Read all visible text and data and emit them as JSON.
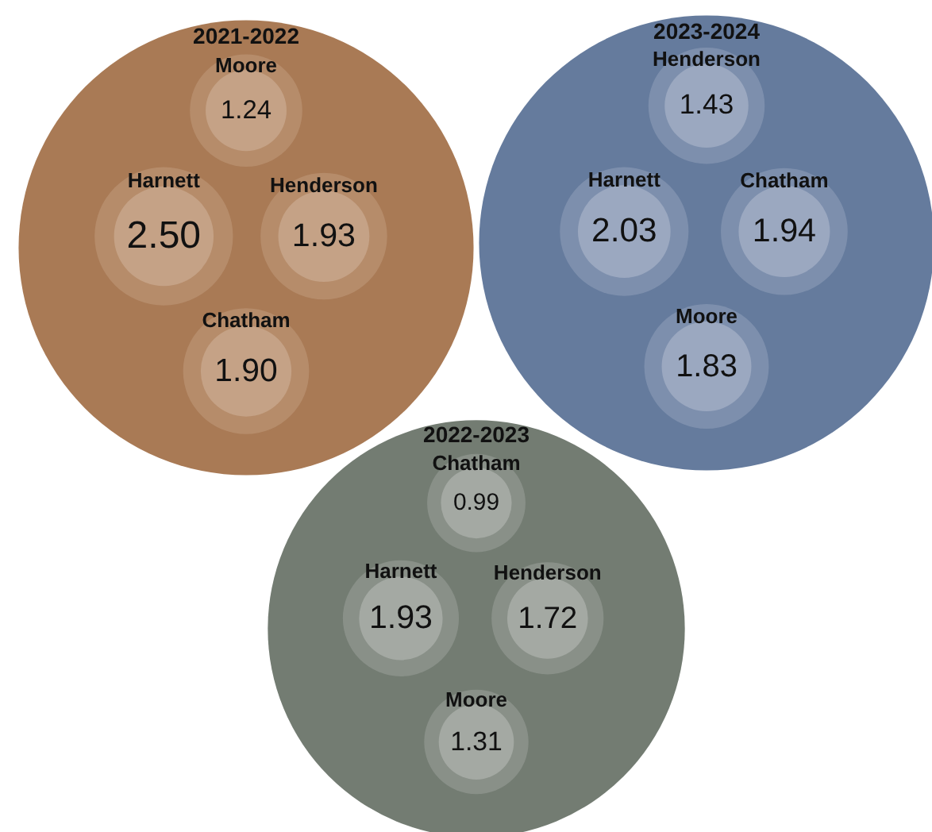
{
  "chart_data": [
    {
      "type": "other",
      "title": "2021-2022",
      "categories": [
        "Moore",
        "Harnett",
        "Henderson",
        "Chatham"
      ],
      "values": [
        1.24,
        2.5,
        1.93,
        1.9
      ],
      "value_labels": [
        "1.24",
        "2.50",
        "1.93",
        "1.90"
      ],
      "color": "#a97a55",
      "colors": [
        "#c5a286",
        "#c5a286",
        "#c5a286",
        "#c5a286"
      ]
    },
    {
      "type": "other",
      "title": "2023-2024",
      "categories": [
        "Henderson",
        "Harnett",
        "Chatham",
        "Moore"
      ],
      "values": [
        1.43,
        2.03,
        1.94,
        1.83
      ],
      "value_labels": [
        "1.43",
        "2.03",
        "1.94",
        "1.83"
      ],
      "color": "#657b9d",
      "colors": [
        "#9ba8c0",
        "#9ba8c0",
        "#9ba8c0",
        "#9ba8c0"
      ]
    },
    {
      "type": "other",
      "title": "2022-2023",
      "categories": [
        "Chatham",
        "Harnett",
        "Henderson",
        "Moore"
      ],
      "values": [
        0.99,
        1.93,
        1.72,
        1.31
      ],
      "value_labels": [
        "0.99",
        "1.93",
        "1.72",
        "1.31"
      ],
      "color": "#737c72",
      "colors": [
        "#a4a9a3",
        "#a4a9a3",
        "#a4a9a3",
        "#a4a9a3"
      ]
    }
  ]
}
